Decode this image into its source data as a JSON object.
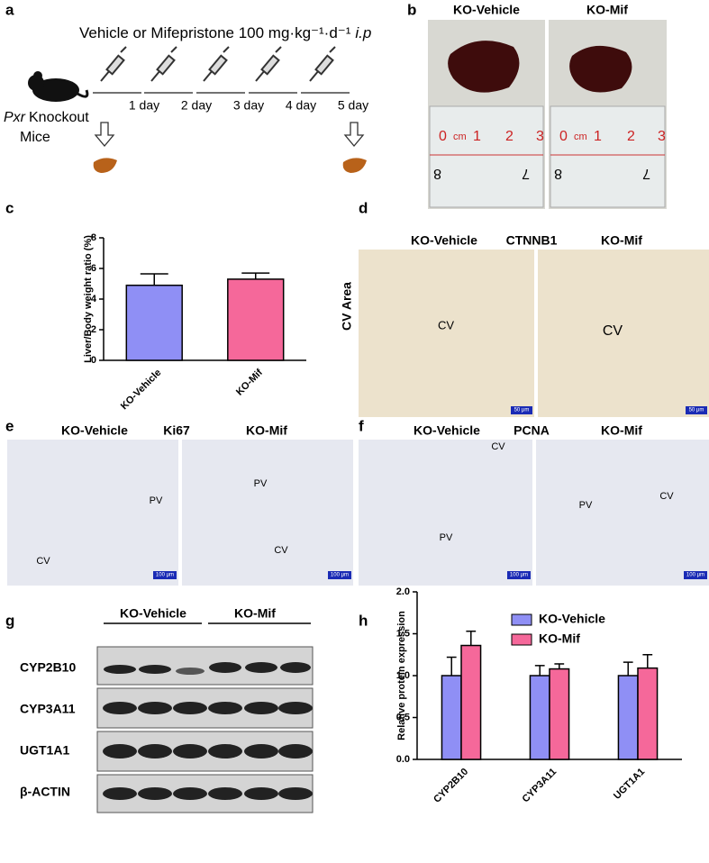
{
  "panels": {
    "a": {
      "letter": "a",
      "treatment": "Vehicle or Mifepristone 100 mg·kg⁻¹·d⁻¹",
      "route": "i.p",
      "mouse_gene": "Pxr",
      "mouse_label": "Knockout",
      "mouse_label2": "Mice",
      "days": [
        "1 day",
        "2 day",
        "3 day",
        "4 day",
        "5 day"
      ]
    },
    "b": {
      "letter": "b",
      "groups": [
        "KO-Vehicle",
        "KO-Mif"
      ],
      "ruler_top": [
        "0",
        "cm",
        "1",
        "2",
        "3"
      ],
      "ruler_bottom": [
        "8",
        "7"
      ]
    },
    "d": {
      "letter": "d",
      "groups": [
        "KO-Vehicle",
        "KO-Mif"
      ],
      "stain": "CTNNB1",
      "row_label": "CV Area",
      "annotations": [
        "CV",
        "CV"
      ],
      "scale_bar": "50 μm"
    },
    "e": {
      "letter": "e",
      "groups": [
        "KO-Vehicle",
        "KO-Mif"
      ],
      "stain": "Ki67",
      "annotations": [
        "PV",
        "CV",
        "PV",
        "CV"
      ],
      "scale_bar": "100 μm"
    },
    "f": {
      "letter": "f",
      "groups": [
        "KO-Vehicle",
        "KO-Mif"
      ],
      "stain": "PCNA",
      "annotations": [
        "CV",
        "PV",
        "PV",
        "CV"
      ],
      "scale_bar": "100 μm"
    },
    "g": {
      "letter": "g",
      "groups": [
        "KO-Vehicle",
        "KO-Mif"
      ],
      "proteins": [
        "CYP2B10",
        "CYP3A11",
        "UGT1A1",
        "β-ACTIN"
      ]
    }
  },
  "chart_data": [
    {
      "type": "bar",
      "panel_label": "c",
      "ylabel": "Liver/Body weight ratio (%)",
      "categories": [
        "KO-Vehicle",
        "KO-Mif"
      ],
      "values": [
        4.9,
        5.3
      ],
      "errors": [
        0.75,
        0.4
      ],
      "colors": [
        "#8f8ff5",
        "#f5689a"
      ],
      "ylim": [
        0,
        8
      ],
      "yticks": [
        0,
        2,
        4,
        6,
        8
      ]
    },
    {
      "type": "bar",
      "panel_label": "h",
      "ylabel": "Relative protein expression",
      "categories": [
        "CYP2B10",
        "CYP3A11",
        "UGT1A1"
      ],
      "series": [
        {
          "name": "KO-Vehicle",
          "color": "#8f8ff5",
          "values": [
            1.0,
            1.0,
            1.0
          ],
          "errors": [
            0.22,
            0.12,
            0.16
          ]
        },
        {
          "name": "KO-Mif",
          "color": "#f5689a",
          "values": [
            1.36,
            1.08,
            1.09
          ],
          "errors": [
            0.17,
            0.06,
            0.16
          ]
        }
      ],
      "ylim": [
        0,
        2
      ],
      "yticks": [
        {
          "value": 0,
          "label": "0.0"
        },
        0.5,
        {
          "value": 1,
          "label": "1.0"
        },
        1.5,
        {
          "value": 2,
          "label": "2.0"
        }
      ],
      "legend": "top-right"
    }
  ]
}
